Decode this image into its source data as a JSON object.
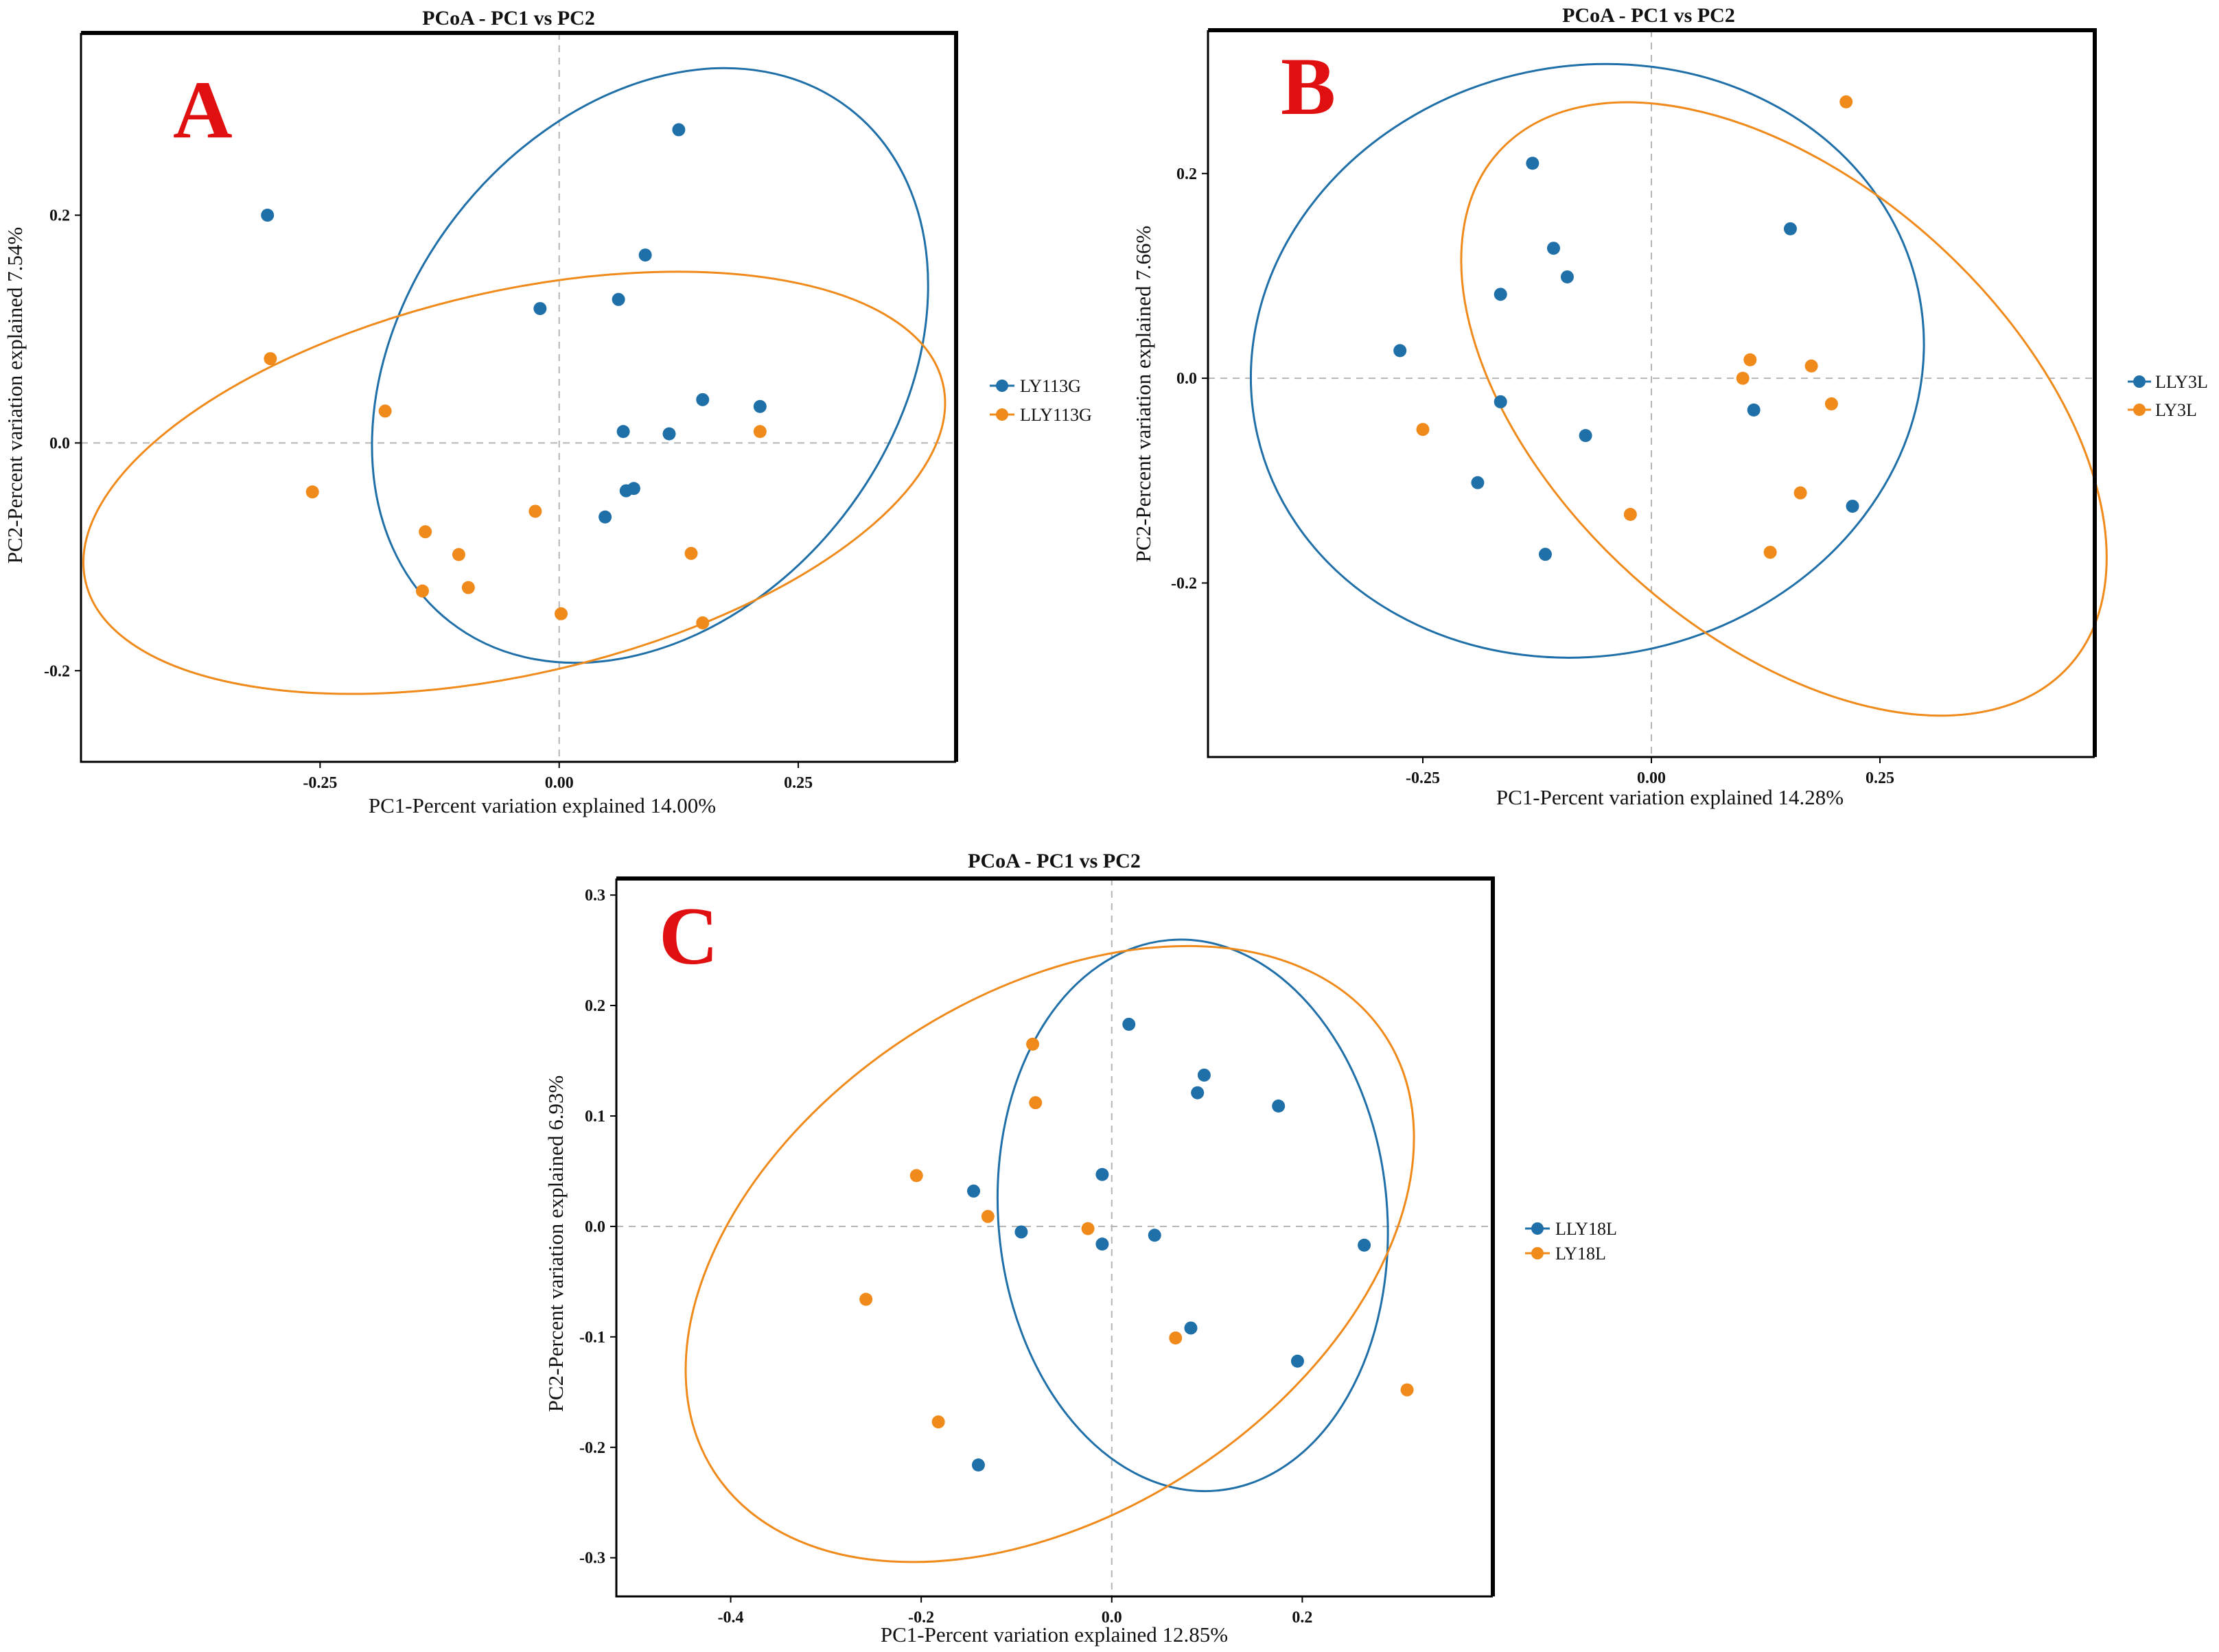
{
  "colors": {
    "blue": "#1f6fa8",
    "orange": "#ef8a1b",
    "letter": "#e01010"
  },
  "chart_data": [
    {
      "id": "A",
      "type": "scatter",
      "panel_label": "A",
      "title": "PCoA - PC1 vs PC2",
      "xlabel": "PC1-Percent variation explained 14.00%",
      "ylabel": "PC2-Percent variation explained 7.54%",
      "xlim": [
        -0.5,
        0.415
      ],
      "ylim": [
        -0.28,
        0.36
      ],
      "xticks": [
        -0.25,
        0,
        0.25
      ],
      "xtick_labels": [
        "-0.25",
        "0.00",
        "0.25"
      ],
      "yticks": [
        -0.2,
        0,
        0.2
      ],
      "ytick_labels": [
        "-0.2",
        "0.0",
        "0.2"
      ],
      "legend_position": "right",
      "series": [
        {
          "name": "LY113G",
          "color": "blue",
          "ellipse": {
            "cx": 0.095,
            "cy": 0.068,
            "rx": 0.34,
            "ry": 0.215,
            "angle_deg": -52
          },
          "points": [
            [
              -0.305,
              0.2
            ],
            [
              0.125,
              0.275
            ],
            [
              0.09,
              0.165
            ],
            [
              -0.02,
              0.118
            ],
            [
              0.062,
              0.126
            ],
            [
              0.15,
              0.038
            ],
            [
              0.21,
              0.032
            ],
            [
              0.067,
              0.01
            ],
            [
              0.115,
              0.008
            ],
            [
              0.078,
              -0.04
            ],
            [
              0.07,
              -0.042
            ],
            [
              0.048,
              -0.065
            ]
          ]
        },
        {
          "name": "LLY113G",
          "color": "orange",
          "ellipse": {
            "cx": -0.047,
            "cy": -0.035,
            "rx": 0.46,
            "ry": 0.168,
            "angle_deg": -13
          },
          "points": [
            [
              -0.302,
              0.074
            ],
            [
              -0.182,
              0.028
            ],
            [
              -0.258,
              -0.043
            ],
            [
              0.21,
              0.01
            ],
            [
              -0.025,
              -0.06
            ],
            [
              -0.14,
              -0.078
            ],
            [
              -0.105,
              -0.098
            ],
            [
              -0.143,
              -0.13
            ],
            [
              -0.095,
              -0.127
            ],
            [
              0.138,
              -0.097
            ],
            [
              0.002,
              -0.15
            ],
            [
              0.15,
              -0.158
            ]
          ]
        }
      ]
    },
    {
      "id": "B",
      "type": "scatter",
      "panel_label": "B",
      "title": "PCoA - PC1 vs PC2",
      "xlabel": "PC1-Percent variation explained 14.28%",
      "ylabel": "PC2-Percent variation explained 7.66%",
      "xlim": [
        -0.485,
        0.485
      ],
      "ylim": [
        -0.37,
        0.34
      ],
      "xticks": [
        -0.25,
        0,
        0.25
      ],
      "xtick_labels": [
        "-0.25",
        "0.00",
        "0.25"
      ],
      "yticks": [
        -0.2,
        0,
        0.2
      ],
      "ytick_labels": [
        "-0.2",
        "0.0",
        "0.2"
      ],
      "legend_position": "right",
      "series": [
        {
          "name": "LLY3L",
          "color": "blue",
          "ellipse": {
            "cx": -0.07,
            "cy": 0.017,
            "rx": 0.37,
            "ry": 0.288,
            "angle_deg": -12
          },
          "points": [
            [
              -0.13,
              0.21
            ],
            [
              0.152,
              0.146
            ],
            [
              -0.107,
              0.127
            ],
            [
              -0.165,
              0.082
            ],
            [
              -0.092,
              0.099
            ],
            [
              -0.275,
              0.027
            ],
            [
              -0.165,
              -0.023
            ],
            [
              -0.072,
              -0.056
            ],
            [
              0.112,
              -0.031
            ],
            [
              -0.19,
              -0.102
            ],
            [
              0.22,
              -0.125
            ],
            [
              -0.116,
              -0.172
            ]
          ]
        },
        {
          "name": "LY3L",
          "color": "orange",
          "ellipse": {
            "cx": 0.145,
            "cy": -0.03,
            "rx": 0.42,
            "ry": 0.22,
            "angle_deg": 42
          },
          "points": [
            [
              0.213,
              0.27
            ],
            [
              0.108,
              0.018
            ],
            [
              0.1,
              0.0
            ],
            [
              0.175,
              0.012
            ],
            [
              0.197,
              -0.025
            ],
            [
              -0.25,
              -0.05
            ],
            [
              0.163,
              -0.112
            ],
            [
              -0.023,
              -0.133
            ],
            [
              0.13,
              -0.17
            ]
          ]
        }
      ]
    },
    {
      "id": "C",
      "type": "scatter",
      "panel_label": "C",
      "title": "PCoA - PC1 vs PC2",
      "xlabel": "PC1-Percent variation explained 12.85%",
      "ylabel": "PC2-Percent variation explained 6.93%",
      "xlim": [
        -0.52,
        0.4
      ],
      "ylim": [
        -0.335,
        0.315
      ],
      "xticks": [
        -0.4,
        -0.2,
        0,
        0.2
      ],
      "xtick_labels": [
        "-0.4",
        "-0.2",
        "0.0",
        "0.2"
      ],
      "yticks": [
        -0.3,
        -0.2,
        -0.1,
        0,
        0.1,
        0.2,
        0.3
      ],
      "ytick_labels": [
        "-0.3",
        "-0.2",
        "-0.1",
        "0.0",
        "0.1",
        "0.2",
        "0.3"
      ],
      "legend_position": "right",
      "series": [
        {
          "name": "LLY18L",
          "color": "blue",
          "ellipse": {
            "cx": 0.085,
            "cy": 0.01,
            "rx": 0.29,
            "ry": 0.176,
            "angle_deg": 85
          },
          "points": [
            [
              0.018,
              0.183
            ],
            [
              0.097,
              0.137
            ],
            [
              0.09,
              0.121
            ],
            [
              0.175,
              0.109
            ],
            [
              -0.01,
              0.047
            ],
            [
              -0.145,
              0.032
            ],
            [
              -0.095,
              -0.005
            ],
            [
              0.045,
              -0.008
            ],
            [
              -0.01,
              -0.016
            ],
            [
              0.265,
              -0.017
            ],
            [
              0.083,
              -0.092
            ],
            [
              0.195,
              -0.122
            ],
            [
              -0.14,
              -0.216
            ]
          ]
        },
        {
          "name": "LY18L",
          "color": "orange",
          "ellipse": {
            "cx": -0.065,
            "cy": -0.025,
            "rx": 0.42,
            "ry": 0.235,
            "angle_deg": -33
          },
          "points": [
            [
              -0.083,
              0.165
            ],
            [
              -0.08,
              0.112
            ],
            [
              -0.205,
              0.046
            ],
            [
              -0.13,
              0.009
            ],
            [
              -0.025,
              -0.002
            ],
            [
              -0.258,
              -0.066
            ],
            [
              0.067,
              -0.101
            ],
            [
              0.31,
              -0.148
            ],
            [
              -0.182,
              -0.177
            ]
          ]
        }
      ]
    }
  ]
}
